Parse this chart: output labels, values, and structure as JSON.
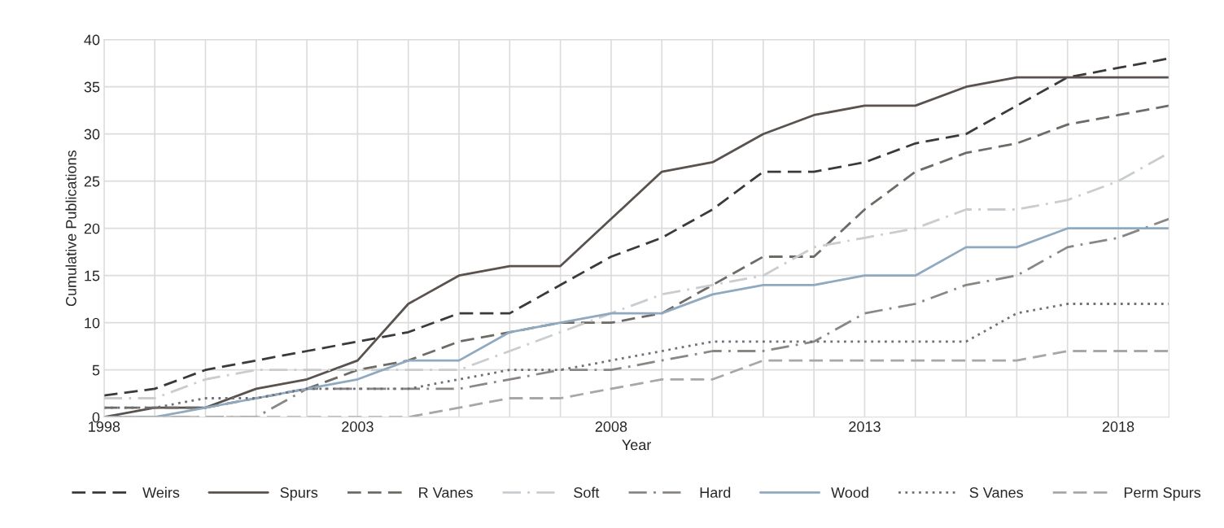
{
  "chart_data": {
    "type": "line",
    "xlabel": "Year",
    "ylabel": "Cumulative Publications",
    "x": [
      1998,
      1999,
      2000,
      2001,
      2002,
      2003,
      2004,
      2005,
      2006,
      2007,
      2008,
      2009,
      2010,
      2011,
      2012,
      2013,
      2014,
      2015,
      2016,
      2017,
      2018,
      2019
    ],
    "xlim": [
      1998,
      2019
    ],
    "ylim": [
      0,
      40
    ],
    "xticks": [
      1998,
      {
        "value": 1999,
        "label": null
      },
      {
        "value": 2000,
        "label": null
      },
      {
        "value": 2001,
        "label": null
      },
      {
        "value": 2002,
        "label": null
      },
      2003,
      {
        "value": 2004,
        "label": null
      },
      {
        "value": 2005,
        "label": null
      },
      {
        "value": 2006,
        "label": null
      },
      {
        "value": 2007,
        "label": null
      },
      2008,
      {
        "value": 2009,
        "label": null
      },
      {
        "value": 2010,
        "label": null
      },
      {
        "value": 2011,
        "label": null
      },
      {
        "value": 2012,
        "label": null
      },
      2013,
      {
        "value": 2014,
        "label": null
      },
      {
        "value": 2015,
        "label": null
      },
      {
        "value": 2016,
        "label": null
      },
      {
        "value": 2017,
        "label": null
      },
      2018
    ],
    "yticks": [
      0,
      5,
      10,
      15,
      20,
      25,
      30,
      35,
      40
    ],
    "grid": true,
    "legend": "bottom",
    "marker": "none",
    "series": [
      {
        "name": "Weirs",
        "color": "#3a3a3a",
        "line_style": "dashed",
        "values": [
          2.3,
          3,
          5,
          6,
          7,
          8,
          9,
          11,
          11,
          14,
          17,
          19,
          22,
          26,
          26,
          27,
          29,
          30,
          33,
          36,
          37,
          38
        ]
      },
      {
        "name": "Spurs",
        "color": "#59524e",
        "line_style": "solid",
        "values": [
          0,
          1,
          1,
          3,
          4,
          6,
          12,
          15,
          16,
          16,
          21,
          26,
          27,
          30,
          32,
          33,
          33,
          35,
          36,
          36,
          36,
          36
        ]
      },
      {
        "name": "R Vanes",
        "color": "#6e6a66",
        "line_style": "dashed",
        "values": [
          1,
          1,
          1,
          2,
          3,
          5,
          6,
          8,
          9,
          10,
          10,
          11,
          14,
          17,
          17,
          22,
          26,
          28,
          29,
          31,
          32,
          33
        ]
      },
      {
        "name": "Soft",
        "color": "#c9cdd0",
        "line_style": "dashdot",
        "values": [
          2,
          2,
          4,
          5,
          5,
          5,
          5,
          5,
          7,
          9,
          11,
          13,
          14,
          15,
          18,
          19,
          20,
          22,
          22,
          23,
          25,
          28
        ]
      },
      {
        "name": "Hard",
        "color": "#8a8683",
        "line_style": "dashdot",
        "values": [
          0,
          0,
          0,
          0,
          3,
          3,
          3,
          3,
          4,
          5,
          5,
          6,
          7,
          7,
          8,
          11,
          12,
          14,
          15,
          18,
          19,
          21
        ]
      },
      {
        "name": "Wood",
        "color": "#8faac0",
        "line_style": "solid",
        "values": [
          0,
          0,
          1,
          2,
          3,
          4,
          6,
          6,
          9,
          10,
          11,
          11,
          13,
          14,
          14,
          15,
          15,
          18,
          18,
          20,
          20,
          20
        ]
      },
      {
        "name": "S Vanes",
        "color": "#6f6f7a",
        "line_style": "dotted",
        "values": [
          1,
          1,
          2,
          2,
          3,
          3,
          3,
          4,
          5,
          5,
          6,
          7,
          8,
          8,
          8,
          8,
          8,
          8,
          11,
          12,
          12,
          12
        ]
      },
      {
        "name": "Perm Spurs",
        "color": "#a9a6a4",
        "line_style": "dashed",
        "values": [
          0,
          0,
          0,
          0,
          0,
          0,
          0,
          1,
          2,
          2,
          3,
          4,
          4,
          6,
          6,
          6,
          6,
          6,
          6,
          7,
          7,
          7
        ]
      }
    ]
  }
}
